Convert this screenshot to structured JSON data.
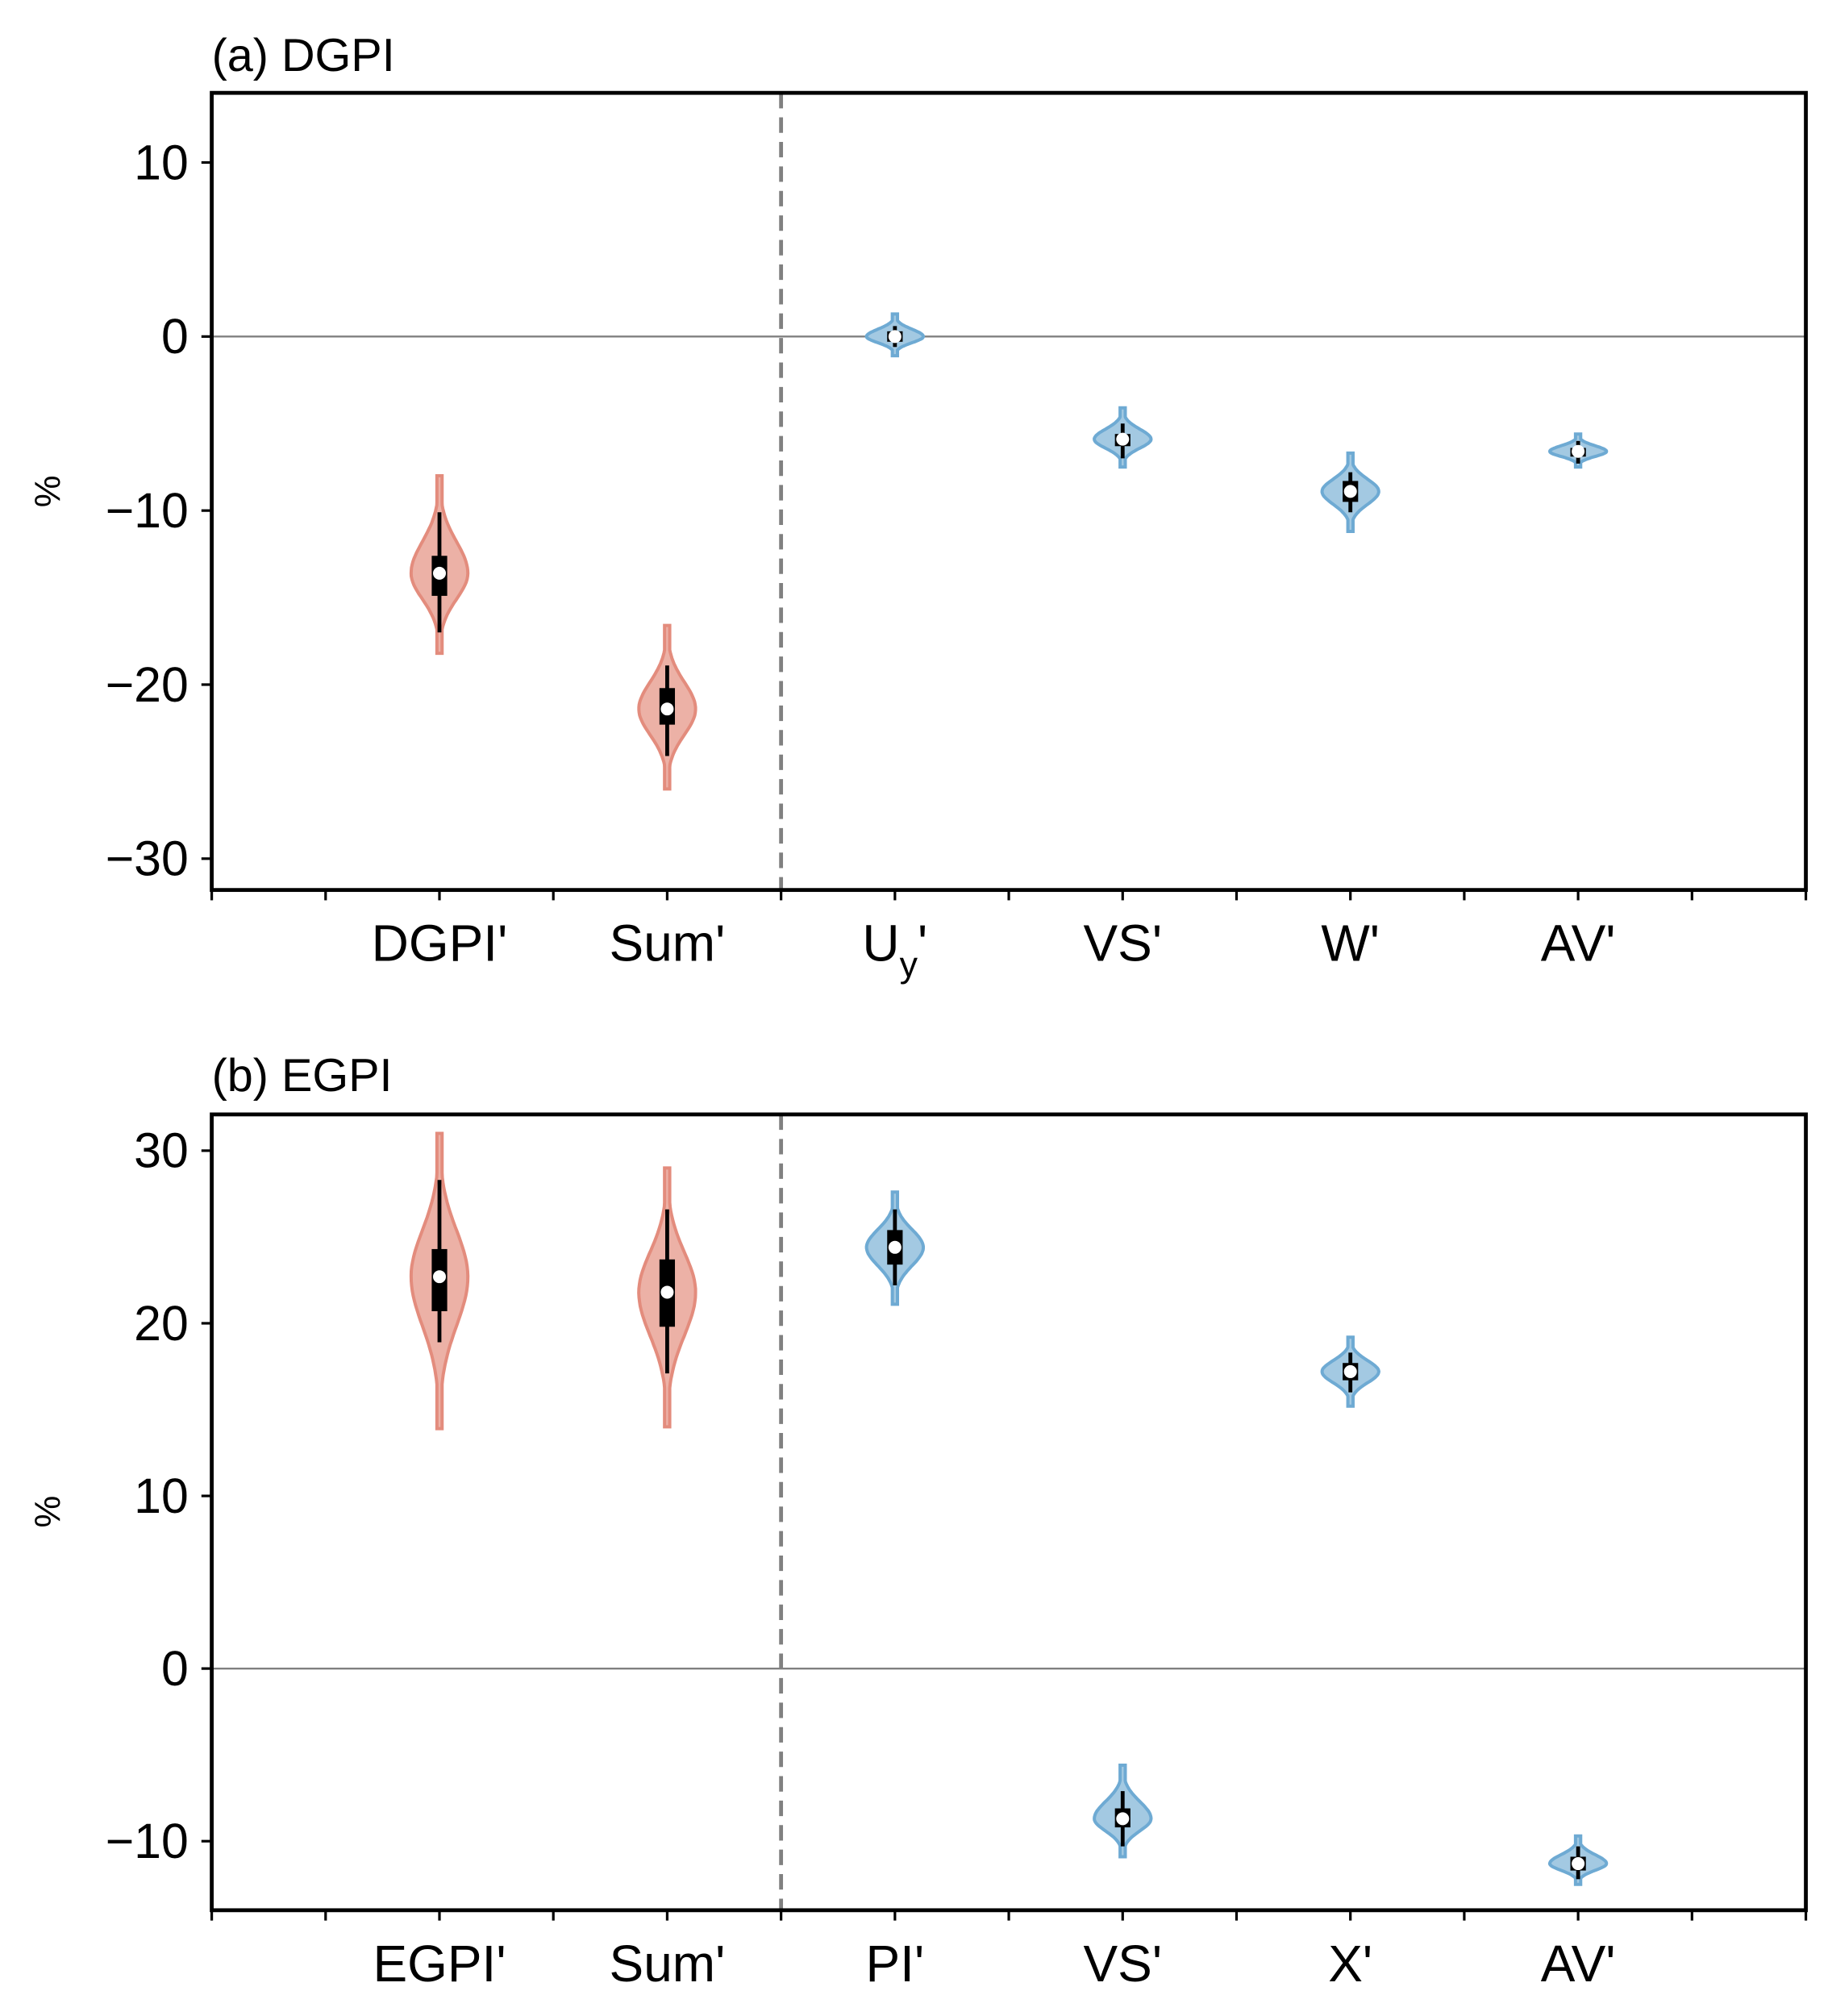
{
  "colors": {
    "left_fill": "#ecb1a6",
    "left_edge": "#e38c7d",
    "right_fill": "#a3c9e2",
    "right_edge": "#6eaad3",
    "zero_line": "#808080",
    "divider": "#808080"
  },
  "chart_data": [
    {
      "type": "violin",
      "title": "(a) DGPI",
      "ylabel": "%",
      "xlabel": "",
      "ylim": [
        -31.8,
        14.0
      ],
      "yticks": [
        10,
        0,
        -10,
        -20,
        -30
      ],
      "ytick_labels": [
        "10",
        "0",
        "−10",
        "−20",
        "−30"
      ],
      "xlim": [
        0,
        14
      ],
      "xticks_minor": [
        0,
        1,
        2,
        3,
        4,
        5,
        6,
        7,
        8,
        9,
        10,
        11,
        12,
        13,
        14
      ],
      "divider_x": 5,
      "zero_line": 0,
      "grid": false,
      "violins": [
        {
          "x": 2,
          "label": {
            "main": "DGPI",
            "sub": "",
            "suffix": "'"
          },
          "group": "left",
          "min": -18.2,
          "max": -8.0,
          "whisker_low": -17.0,
          "q1": -14.9,
          "median": -13.6,
          "q3": -12.6,
          "whisker_high": -10.1
        },
        {
          "x": 4,
          "label": {
            "main": "Sum",
            "sub": "",
            "suffix": "'"
          },
          "group": "left",
          "min": -26.0,
          "max": -16.6,
          "whisker_low": -24.1,
          "q1": -22.3,
          "median": -21.4,
          "q3": -20.2,
          "whisker_high": -18.9
        },
        {
          "x": 6,
          "label": {
            "main": "U",
            "sub": "y",
            "suffix": "'"
          },
          "group": "right",
          "min": -1.1,
          "max": 1.3,
          "whisker_low": -0.6,
          "q1": -0.3,
          "median": 0.0,
          "q3": 0.3,
          "whisker_high": 0.6
        },
        {
          "x": 8,
          "label": {
            "main": "VS",
            "sub": "",
            "suffix": "'"
          },
          "group": "right",
          "min": -7.5,
          "max": -4.1,
          "whisker_low": -7.0,
          "q1": -6.3,
          "median": -5.9,
          "q3": -5.6,
          "whisker_high": -5.0
        },
        {
          "x": 10,
          "label": {
            "main": "W",
            "sub": "",
            "suffix": "'"
          },
          "group": "right",
          "min": -11.2,
          "max": -6.7,
          "whisker_low": -10.1,
          "q1": -9.5,
          "median": -8.9,
          "q3": -8.3,
          "whisker_high": -7.8
        },
        {
          "x": 12,
          "label": {
            "main": "AV",
            "sub": "",
            "suffix": "'"
          },
          "group": "right",
          "min": -7.5,
          "max": -5.6,
          "whisker_low": -7.3,
          "q1": -6.9,
          "median": -6.6,
          "q3": -6.4,
          "whisker_high": -6.0
        }
      ]
    },
    {
      "type": "violin",
      "title": "(b) EGPI",
      "ylabel": "%",
      "xlabel": "",
      "ylim": [
        -14.0,
        32.1
      ],
      "yticks": [
        30,
        20,
        10,
        0,
        -10
      ],
      "ytick_labels": [
        "30",
        "20",
        "10",
        "0",
        "−10"
      ],
      "xlim": [
        0,
        14
      ],
      "xticks_minor": [
        0,
        1,
        2,
        3,
        4,
        5,
        6,
        7,
        8,
        9,
        10,
        11,
        12,
        13,
        14
      ],
      "divider_x": 5,
      "zero_line": 0,
      "grid": false,
      "violins": [
        {
          "x": 2,
          "label": {
            "main": "EGPI",
            "sub": "",
            "suffix": "'"
          },
          "group": "left",
          "min": 13.9,
          "max": 31.0,
          "whisker_low": 18.9,
          "q1": 20.7,
          "median": 22.7,
          "q3": 24.3,
          "whisker_high": 28.3
        },
        {
          "x": 4,
          "label": {
            "main": "Sum",
            "sub": "",
            "suffix": "'"
          },
          "group": "left",
          "min": 14.0,
          "max": 29.0,
          "whisker_low": 17.1,
          "q1": 19.8,
          "median": 21.8,
          "q3": 23.7,
          "whisker_high": 26.6
        },
        {
          "x": 6,
          "label": {
            "main": "PI",
            "sub": "",
            "suffix": "'"
          },
          "group": "right",
          "min": 21.1,
          "max": 27.6,
          "whisker_low": 22.2,
          "q1": 23.4,
          "median": 24.4,
          "q3": 25.4,
          "whisker_high": 26.6
        },
        {
          "x": 8,
          "label": {
            "main": "VS",
            "sub": "",
            "suffix": "'"
          },
          "group": "right",
          "min": -10.9,
          "max": -5.6,
          "whisker_low": -10.3,
          "q1": -9.2,
          "median": -8.7,
          "q3": -8.1,
          "whisker_high": -7.1
        },
        {
          "x": 10,
          "label": {
            "main": "X",
            "sub": "",
            "suffix": "'"
          },
          "group": "right",
          "min": 15.2,
          "max": 19.2,
          "whisker_low": 16.0,
          "q1": 16.7,
          "median": 17.2,
          "q3": 17.7,
          "whisker_high": 18.3
        },
        {
          "x": 12,
          "label": {
            "main": "AV",
            "sub": "",
            "suffix": "'"
          },
          "group": "right",
          "min": -12.5,
          "max": -9.7,
          "whisker_low": -12.2,
          "q1": -11.7,
          "median": -11.3,
          "q3": -10.9,
          "whisker_high": -10.3
        }
      ]
    }
  ]
}
